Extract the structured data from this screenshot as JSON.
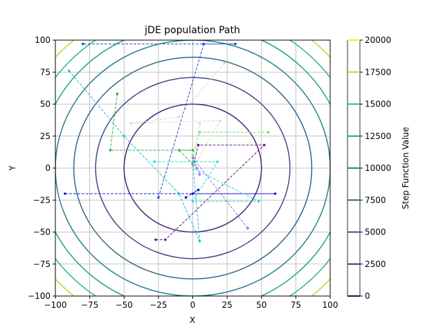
{
  "chart_data": {
    "type": "line",
    "title": "jDE population Path",
    "xlabel": "X",
    "ylabel": "Y",
    "xlim": [
      -100,
      100
    ],
    "ylim": [
      -100,
      100
    ],
    "xticks": [
      -100,
      -75,
      -50,
      -25,
      0,
      25,
      50,
      75,
      100
    ],
    "yticks": [
      -100,
      -75,
      -50,
      -25,
      0,
      25,
      50,
      75,
      100
    ],
    "grid": true,
    "colorbar": {
      "label": "Step Function Value",
      "range": [
        0,
        20000
      ],
      "ticks": [
        0,
        2500,
        5000,
        7500,
        10000,
        12500,
        15000,
        17500,
        20000
      ]
    },
    "contour_levels": [
      {
        "value": 2500,
        "color": "#482878"
      },
      {
        "value": 5000,
        "color": "#3e4a89"
      },
      {
        "value": 7500,
        "color": "#31688e"
      },
      {
        "value": 10000,
        "color": "#26828e"
      },
      {
        "value": 12500,
        "color": "#1f9e89"
      },
      {
        "value": 15000,
        "color": "#35b779"
      },
      {
        "value": 17500,
        "color": "#b5de2b"
      }
    ],
    "series": [
      {
        "color": "#1a4fd6",
        "points": [
          [
            -25,
            -23
          ],
          [
            8,
            97
          ],
          [
            31,
            97
          ],
          [
            -80,
            97
          ]
        ]
      },
      {
        "color": "#1a1acc",
        "points": [
          [
            -93,
            -20
          ],
          [
            60,
            -20
          ],
          [
            0,
            -20
          ],
          [
            4,
            -17
          ],
          [
            -5,
            -23
          ]
        ]
      },
      {
        "color": "#20c0d0",
        "points": [
          [
            -90,
            76
          ],
          [
            -50,
            25
          ],
          [
            -10,
            -20
          ],
          [
            5,
            -57
          ],
          [
            0,
            5
          ],
          [
            3,
            0
          ]
        ]
      },
      {
        "color": "#30b050",
        "points": [
          [
            -55,
            58
          ],
          [
            -60,
            14
          ],
          [
            0,
            14
          ],
          [
            -10,
            14
          ],
          [
            0,
            3
          ]
        ]
      },
      {
        "color": "#6ee86e",
        "points": [
          [
            55,
            28
          ],
          [
            5,
            28
          ],
          [
            0,
            10
          ],
          [
            2,
            5
          ]
        ]
      },
      {
        "color": "#20e0e0",
        "points": [
          [
            -28,
            5
          ],
          [
            18,
            5
          ],
          [
            0,
            -26
          ],
          [
            48,
            -26
          ],
          [
            0,
            0
          ]
        ]
      },
      {
        "color": "#6a1a8a",
        "points": [
          [
            -27,
            -56
          ],
          [
            -20,
            -56
          ],
          [
            52,
            18
          ],
          [
            4,
            18
          ],
          [
            0,
            0
          ]
        ]
      },
      {
        "color": "#9a70e0",
        "points": [
          [
            40,
            -47
          ],
          [
            0,
            8
          ],
          [
            5,
            -5
          ]
        ]
      },
      {
        "color": "#d8d8c8",
        "points": [
          [
            23,
            82
          ],
          [
            -10,
            40
          ],
          [
            -45,
            35
          ],
          [
            20,
            37
          ],
          [
            0,
            0
          ],
          [
            5,
            35
          ]
        ]
      }
    ]
  }
}
